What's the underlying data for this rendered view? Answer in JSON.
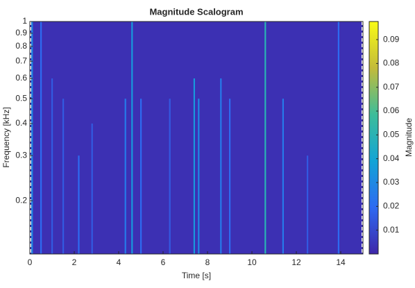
{
  "chart_data": {
    "type": "scalogram",
    "title": "Magnitude Scalogram",
    "x_label": "Time [s]",
    "y_label": "Frequency [kHz]",
    "colorbar_label": "Magnitude",
    "xlim": [
      0,
      15
    ],
    "xticks": [
      0,
      2,
      4,
      6,
      8,
      10,
      12,
      14
    ],
    "ylim": [
      0.124,
      1
    ],
    "yticks": [
      0.2,
      0.3,
      0.4,
      0.5,
      0.6,
      0.7,
      0.8,
      0.9,
      1
    ],
    "y_scale": "log",
    "clim": [
      0,
      0.0976
    ],
    "cticks": [
      0.01,
      0.02,
      0.03,
      0.04,
      0.05,
      0.06,
      0.07,
      0.08,
      0.09
    ],
    "colormap": [
      "#3e26a8",
      "#2e6af2",
      "#12a4d6",
      "#3dbd9a",
      "#c3bb3a",
      "#f9fb15"
    ],
    "background": 0.003,
    "events": {
      "time": [
        0.1,
        0.5,
        1.0,
        1.5,
        2.2,
        2.8,
        4.3,
        4.6,
        5.0,
        6.3,
        7.4,
        7.6,
        8.6,
        9.0,
        10.6,
        11.4,
        12.5,
        13.9
      ],
      "magnitude": [
        0.03,
        0.02,
        0.015,
        0.015,
        0.02,
        0.015,
        0.025,
        0.035,
        0.02,
        0.015,
        0.035,
        0.03,
        0.025,
        0.02,
        0.05,
        0.025,
        0.015,
        0.02
      ],
      "fmax": [
        1,
        1,
        0.6,
        0.5,
        0.3,
        0.4,
        0.5,
        1,
        0.5,
        0.5,
        0.6,
        0.5,
        0.6,
        0.5,
        1,
        0.5,
        0.3,
        1
      ]
    }
  }
}
